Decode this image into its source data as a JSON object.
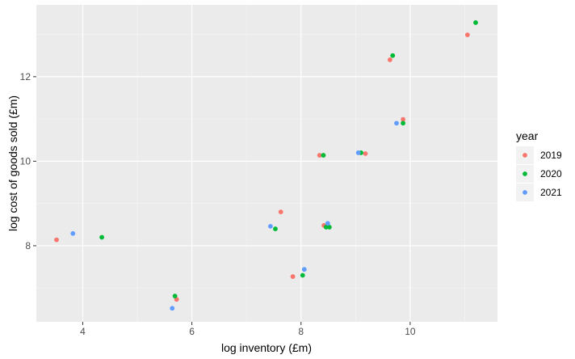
{
  "chart_data": {
    "type": "scatter",
    "xlabel": "log inventory (£m)",
    "ylabel": "log cost of goods sold (£m)",
    "xlim": [
      3.15,
      11.6
    ],
    "ylim": [
      6.2,
      13.7
    ],
    "x_ticks": [
      4,
      6,
      8,
      10
    ],
    "y_ticks": [
      8,
      10,
      12
    ],
    "grid": true,
    "legend_title": "year",
    "legend_position": "right",
    "series": [
      {
        "name": "2019",
        "color": "#F8766D",
        "points": [
          {
            "x": 3.52,
            "y": 8.14
          },
          {
            "x": 5.72,
            "y": 6.73
          },
          {
            "x": 7.63,
            "y": 8.8
          },
          {
            "x": 7.85,
            "y": 7.27
          },
          {
            "x": 8.34,
            "y": 10.14
          },
          {
            "x": 8.42,
            "y": 8.48
          },
          {
            "x": 9.18,
            "y": 10.18
          },
          {
            "x": 9.63,
            "y": 12.4
          },
          {
            "x": 9.87,
            "y": 10.99
          },
          {
            "x": 11.05,
            "y": 12.99
          }
        ]
      },
      {
        "name": "2020",
        "color": "#00BA38",
        "points": [
          {
            "x": 4.35,
            "y": 8.2
          },
          {
            "x": 5.69,
            "y": 6.81
          },
          {
            "x": 7.53,
            "y": 8.4
          },
          {
            "x": 8.03,
            "y": 7.3
          },
          {
            "x": 8.41,
            "y": 10.14
          },
          {
            "x": 8.46,
            "y": 8.44
          },
          {
            "x": 8.52,
            "y": 8.44
          },
          {
            "x": 9.1,
            "y": 10.2
          },
          {
            "x": 9.68,
            "y": 12.5
          },
          {
            "x": 9.87,
            "y": 10.9
          },
          {
            "x": 11.2,
            "y": 13.28
          }
        ]
      },
      {
        "name": "2021",
        "color": "#619CFF",
        "points": [
          {
            "x": 3.82,
            "y": 8.29
          },
          {
            "x": 5.64,
            "y": 6.52
          },
          {
            "x": 7.44,
            "y": 8.46
          },
          {
            "x": 8.06,
            "y": 7.44
          },
          {
            "x": 8.49,
            "y": 8.53
          },
          {
            "x": 9.05,
            "y": 10.2
          },
          {
            "x": 9.75,
            "y": 10.9
          }
        ]
      }
    ]
  }
}
